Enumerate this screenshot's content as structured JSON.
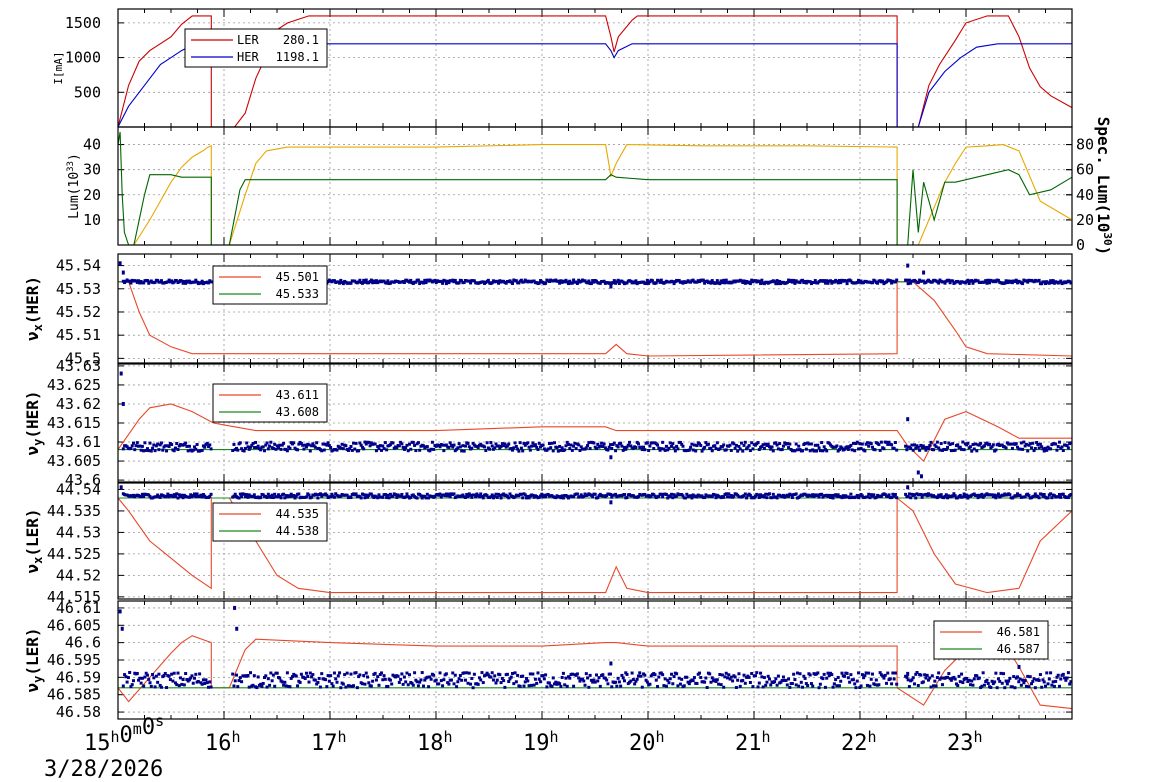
{
  "colors": {
    "red": "#cc0000",
    "blue": "#0000cc",
    "orange": "#e8a800",
    "green": "#006600",
    "tuneRed": "#e8482a",
    "tuneGreen": "#1a8a1a",
    "points": "#00008b"
  },
  "time_axis": {
    "start_label": "15h0m0s",
    "date": "3/28/2026",
    "hours": [
      "16",
      "17",
      "18",
      "19",
      "20",
      "21",
      "22",
      "23"
    ]
  },
  "chart_data": [
    {
      "type": "line",
      "id": "current",
      "ylabel": "I[mA]",
      "ylim": [
        0,
        1700
      ],
      "yticks": [
        500,
        1000,
        1500
      ],
      "legend": [
        {
          "name": "LER",
          "value": "280.1",
          "color": "red"
        },
        {
          "name": "HER",
          "value": "1198.1",
          "color": "blue"
        }
      ],
      "series": [
        {
          "name": "LER",
          "color": "red",
          "x": [
            15.0,
            15.1,
            15.2,
            15.3,
            15.5,
            15.6,
            15.7,
            15.8,
            15.88,
            15.88,
            16.1,
            16.2,
            16.3,
            16.45,
            16.5,
            16.6,
            16.8,
            19.6,
            19.65,
            19.68,
            19.72,
            19.85,
            19.9,
            22.35,
            22.35,
            22.55,
            22.65,
            22.75,
            22.9,
            23.0,
            23.2,
            23.4,
            23.5,
            23.6,
            23.7,
            23.8,
            24.0
          ],
          "y": [
            0,
            600,
            950,
            1100,
            1300,
            1480,
            1600,
            1600,
            1600,
            0,
            0,
            200,
            700,
            1200,
            1400,
            1500,
            1600,
            1600,
            1300,
            1080,
            1300,
            1540,
            1600,
            1600,
            0,
            0,
            600,
            900,
            1250,
            1500,
            1600,
            1600,
            1300,
            850,
            580,
            450,
            280.1
          ]
        },
        {
          "name": "HER",
          "color": "blue",
          "x": [
            15.0,
            15.1,
            15.2,
            15.3,
            15.4,
            15.5,
            15.6,
            15.7,
            15.8,
            15.88,
            16.1,
            16.2,
            16.5,
            19.6,
            19.65,
            19.68,
            19.72,
            19.85,
            22.35,
            22.35,
            22.55,
            22.65,
            22.8,
            22.95,
            23.1,
            23.3,
            24.0
          ],
          "y": [
            0,
            300,
            500,
            700,
            900,
            1000,
            1100,
            1180,
            1200,
            1198,
            1198,
            1198,
            1198,
            1198,
            1100,
            1000,
            1100,
            1198,
            1198,
            0,
            0,
            500,
            800,
            1000,
            1150,
            1198,
            1198.1
          ]
        }
      ]
    },
    {
      "type": "line",
      "id": "luminosity",
      "ylabel": "Lum(10^33)",
      "ylabel_right": "Spec. Lum(10^30)",
      "ylim": [
        0,
        47
      ],
      "ylim_right": [
        0,
        94
      ],
      "yticks": [
        10,
        20,
        30,
        40
      ],
      "yticks_right": [
        0,
        20,
        40,
        60,
        80
      ],
      "series": [
        {
          "name": "Spec. Lum",
          "color": "orange",
          "axis": "right",
          "x": [
            15.0,
            15.15,
            15.3,
            15.4,
            15.5,
            15.6,
            15.7,
            15.8,
            15.85,
            15.88,
            15.88,
            16.05,
            16.2,
            16.3,
            16.4,
            16.6,
            17.0,
            18.0,
            19.0,
            19.6,
            19.65,
            19.7,
            19.8,
            20.5,
            21.5,
            22.35,
            22.35,
            22.45,
            22.55,
            22.7,
            22.8,
            22.9,
            23.0,
            23.2,
            23.35,
            23.5,
            23.7,
            23.9,
            24.0
          ],
          "y": [
            0,
            0,
            20,
            35,
            50,
            62,
            70,
            75,
            78,
            79,
            0,
            0,
            40,
            65,
            75,
            78,
            78,
            78,
            80,
            80,
            55,
            65,
            80,
            79,
            79,
            78,
            0,
            0,
            0,
            30,
            50,
            65,
            78,
            79,
            80,
            75,
            35,
            25,
            20
          ]
        },
        {
          "name": "Lum",
          "color": "green",
          "axis": "left",
          "x": [
            15.0,
            15.02,
            15.04,
            15.06,
            15.1,
            15.15,
            15.2,
            15.25,
            15.3,
            15.4,
            15.5,
            15.6,
            15.8,
            15.88,
            15.88,
            16.05,
            16.15,
            16.2,
            16.3,
            17.0,
            18.0,
            19.0,
            19.6,
            19.65,
            19.7,
            20.0,
            21.0,
            22.35,
            22.35,
            22.45,
            22.5,
            22.55,
            22.6,
            22.7,
            22.8,
            22.9,
            23.0,
            23.2,
            23.4,
            23.5,
            23.6,
            23.8,
            24.0
          ],
          "y": [
            40,
            45,
            20,
            5,
            0,
            0,
            10,
            20,
            28,
            28,
            28,
            27,
            27,
            27,
            0,
            0,
            22,
            26,
            26,
            26,
            26,
            26,
            26,
            28,
            27,
            26,
            26,
            26,
            0,
            0,
            30,
            5,
            25,
            10,
            25,
            25,
            26,
            28,
            30,
            28,
            20,
            22,
            27
          ]
        }
      ]
    },
    {
      "type": "line",
      "id": "nux_her",
      "ylabel": "νx(HER)",
      "ylim": [
        45.498,
        45.545
      ],
      "yticks": [
        45.5,
        45.51,
        45.52,
        45.53,
        45.54
      ],
      "ytick_labels": [
        "45.5",
        "45.51",
        "45.52",
        "45.53",
        "45.54"
      ],
      "legend": [
        {
          "value": "45.501",
          "color": "tuneRed"
        },
        {
          "value": "45.533",
          "color": "tuneGreen"
        }
      ],
      "series": [
        {
          "name": "set",
          "color": "tuneRed",
          "x": [
            15.0,
            15.1,
            15.2,
            15.3,
            15.5,
            15.7,
            15.9,
            16.5,
            19.6,
            19.7,
            19.8,
            20.0,
            22.35,
            22.35,
            22.5,
            22.7,
            22.9,
            23.0,
            23.2,
            24.0
          ],
          "y": [
            45.533,
            45.533,
            45.52,
            45.51,
            45.505,
            45.502,
            45.502,
            45.502,
            45.502,
            45.506,
            45.502,
            45.501,
            45.502,
            45.533,
            45.533,
            45.525,
            45.512,
            45.505,
            45.502,
            45.501
          ]
        },
        {
          "name": "ref",
          "color": "tuneGreen",
          "x": [
            15.0,
            24.0
          ],
          "y": [
            45.533,
            45.533
          ]
        },
        {
          "name": "meas",
          "color": "points",
          "style": "points",
          "base": 45.533,
          "noise": 0.0008,
          "spikes": [
            {
              "x": 15.02,
              "y": 45.541
            },
            {
              "x": 15.05,
              "y": 45.537
            },
            {
              "x": 19.65,
              "y": 45.531
            },
            {
              "x": 22.45,
              "y": 45.54
            },
            {
              "x": 22.6,
              "y": 45.537
            }
          ]
        }
      ]
    },
    {
      "type": "line",
      "id": "nuy_her",
      "ylabel": "νy(HER)",
      "ylim": [
        43.5995,
        43.6305
      ],
      "yticks": [
        43.6,
        43.605,
        43.61,
        43.615,
        43.62,
        43.625,
        43.63
      ],
      "ytick_labels": [
        "43.6",
        "43.605",
        "43.61",
        "43.615",
        "43.62",
        "43.625",
        "43.63"
      ],
      "legend": [
        {
          "value": "43.611",
          "color": "tuneRed"
        },
        {
          "value": "43.608",
          "color": "tuneGreen"
        }
      ],
      "series": [
        {
          "name": "set",
          "color": "tuneRed",
          "x": [
            15.0,
            15.1,
            15.2,
            15.3,
            15.5,
            15.7,
            15.9,
            16.1,
            16.3,
            17.0,
            18.0,
            19.0,
            19.6,
            19.7,
            20.0,
            21.0,
            22.0,
            22.35,
            22.45,
            22.6,
            22.8,
            23.0,
            23.3,
            23.5,
            24.0
          ],
          "y": [
            43.608,
            43.612,
            43.616,
            43.619,
            43.62,
            43.618,
            43.615,
            43.614,
            43.613,
            43.613,
            43.613,
            43.614,
            43.614,
            43.613,
            43.613,
            43.613,
            43.613,
            43.613,
            43.609,
            43.605,
            43.616,
            43.618,
            43.614,
            43.611,
            43.611
          ]
        },
        {
          "name": "ref",
          "color": "tuneGreen",
          "x": [
            15.0,
            24.0
          ],
          "y": [
            43.608,
            43.608
          ]
        },
        {
          "name": "meas",
          "color": "points",
          "style": "points",
          "base": 43.6088,
          "noise": 0.0012,
          "spikes": [
            {
              "x": 15.03,
              "y": 43.628
            },
            {
              "x": 15.05,
              "y": 43.62
            },
            {
              "x": 19.65,
              "y": 43.606
            },
            {
              "x": 22.45,
              "y": 43.616
            },
            {
              "x": 22.55,
              "y": 43.602
            },
            {
              "x": 22.58,
              "y": 43.601
            }
          ]
        }
      ]
    },
    {
      "type": "line",
      "id": "nux_ler",
      "ylabel": "νx(LER)",
      "ylim": [
        44.5145,
        44.5415
      ],
      "yticks": [
        44.515,
        44.52,
        44.525,
        44.53,
        44.535,
        44.54
      ],
      "ytick_labels": [
        "44.515",
        "44.52",
        "44.525",
        "44.53",
        "44.535",
        "44.54"
      ],
      "legend": [
        {
          "value": "44.535",
          "color": "tuneRed"
        },
        {
          "value": "44.538",
          "color": "tuneGreen"
        }
      ],
      "series": [
        {
          "name": "set",
          "color": "tuneRed",
          "x": [
            15.0,
            15.1,
            15.3,
            15.5,
            15.7,
            15.88,
            15.88,
            16.05,
            16.3,
            16.5,
            16.7,
            17.0,
            19.6,
            19.7,
            19.8,
            20.0,
            22.35,
            22.35,
            22.5,
            22.7,
            22.9,
            23.2,
            23.5,
            23.7,
            24.0
          ],
          "y": [
            44.538,
            44.535,
            44.528,
            44.524,
            44.52,
            44.517,
            44.538,
            44.538,
            44.528,
            44.52,
            44.517,
            44.516,
            44.516,
            44.522,
            44.517,
            44.516,
            44.516,
            44.538,
            44.535,
            44.525,
            44.518,
            44.516,
            44.517,
            44.528,
            44.535
          ]
        },
        {
          "name": "ref",
          "color": "tuneGreen",
          "x": [
            15.0,
            24.0
          ],
          "y": [
            44.538,
            44.538
          ]
        },
        {
          "name": "meas",
          "color": "points",
          "style": "points",
          "base": 44.5385,
          "noise": 0.0005,
          "spikes": [
            {
              "x": 15.03,
              "y": 44.5405
            },
            {
              "x": 19.65,
              "y": 44.537
            },
            {
              "x": 22.45,
              "y": 44.5405
            }
          ]
        }
      ]
    },
    {
      "type": "line",
      "id": "nuy_ler",
      "ylabel": "νy(LER)",
      "ylim": [
        46.578,
        46.612
      ],
      "yticks": [
        46.58,
        46.585,
        46.59,
        46.595,
        46.6,
        46.605,
        46.61
      ],
      "ytick_labels": [
        "46.58",
        "46.585",
        "46.59",
        "46.595",
        "46.6",
        "46.605",
        "46.61"
      ],
      "legend": [
        {
          "value": "46.581",
          "color": "tuneRed"
        },
        {
          "value": "46.587",
          "color": "tuneGreen"
        }
      ],
      "series": [
        {
          "name": "set",
          "color": "tuneRed",
          "x": [
            15.0,
            15.1,
            15.3,
            15.5,
            15.6,
            15.7,
            15.88,
            15.88,
            16.05,
            16.2,
            16.3,
            17.0,
            18.0,
            19.0,
            19.6,
            19.7,
            20.0,
            21.0,
            22.35,
            22.35,
            22.5,
            22.6,
            22.8,
            23.0,
            23.4,
            23.5,
            23.7,
            24.0
          ],
          "y": [
            46.587,
            46.583,
            46.59,
            46.597,
            46.6,
            46.602,
            46.6,
            46.587,
            46.587,
            46.598,
            46.601,
            46.6,
            46.599,
            46.599,
            46.6,
            46.6,
            46.599,
            46.599,
            46.599,
            46.587,
            46.584,
            46.582,
            46.592,
            46.598,
            46.598,
            46.593,
            46.582,
            46.581
          ]
        },
        {
          "name": "ref",
          "color": "tuneGreen",
          "x": [
            15.0,
            24.0
          ],
          "y": [
            46.587,
            46.587
          ]
        },
        {
          "name": "meas",
          "color": "points",
          "style": "points",
          "base": 46.5892,
          "noise": 0.0022,
          "spikes": [
            {
              "x": 15.02,
              "y": 46.609
            },
            {
              "x": 15.04,
              "y": 46.604
            },
            {
              "x": 16.1,
              "y": 46.61
            },
            {
              "x": 16.12,
              "y": 46.604
            },
            {
              "x": 19.65,
              "y": 46.594
            },
            {
              "x": 22.45,
              "y": 46.591
            },
            {
              "x": 23.5,
              "y": 46.593
            }
          ]
        }
      ]
    }
  ]
}
